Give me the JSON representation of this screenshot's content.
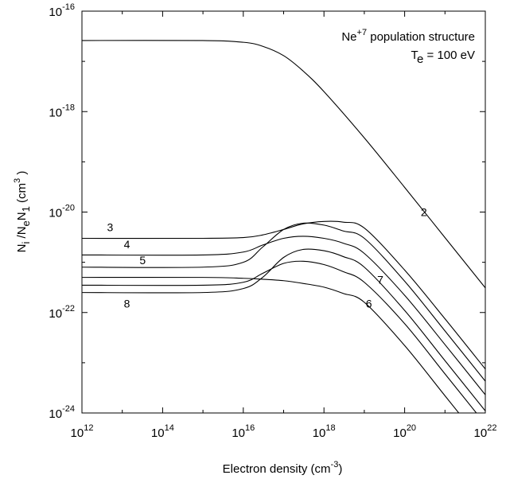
{
  "chart_data": {
    "type": "line",
    "title": {
      "species_base": "Ne",
      "species_sup": "+7",
      "rest": " population structure"
    },
    "subtitle": {
      "base": "T",
      "sub": "e",
      "rest": " = 100 eV"
    },
    "xlabel": {
      "text": "Electron density (cm",
      "sup": "-3",
      "close": ")"
    },
    "ylabel": {
      "p1": "N",
      "s1": "i",
      "p2": " /N",
      "s2": "e",
      "p3": "N",
      "s3": "1",
      "p4": " (cm",
      "sup": "3",
      "p5": " )"
    },
    "x_scale": "log",
    "y_scale": "log",
    "xlim": [
      1000000000000.0,
      1e+22
    ],
    "ylim": [
      1e-24,
      1e-16
    ],
    "grid": false,
    "x_ticks": [
      {
        "base": "10",
        "exp": "12",
        "value": 1000000000000.0
      },
      {
        "base": "10",
        "exp": "14",
        "value": 100000000000000.0
      },
      {
        "base": "10",
        "exp": "16",
        "value": 1e+16
      },
      {
        "base": "10",
        "exp": "18",
        "value": 1e+18
      },
      {
        "base": "10",
        "exp": "20",
        "value": 1e+20
      },
      {
        "base": "10",
        "exp": "22",
        "value": 1e+22
      }
    ],
    "y_ticks": [
      {
        "base": "10",
        "exp": "-24",
        "value": 1e-24
      },
      {
        "base": "10",
        "exp": "-22",
        "value": 1e-22
      },
      {
        "base": "10",
        "exp": "-20",
        "value": 1e-20
      },
      {
        "base": "10",
        "exp": "-18",
        "value": 1e-18
      },
      {
        "base": "10",
        "exp": "-16",
        "value": 1e-16
      }
    ],
    "series": [
      {
        "name": "2",
        "label_at": [
          3e+20,
          1e-20
        ],
        "x": [
          1000000000000.0,
          1000000000000000.0,
          1e+16,
          3e+16,
          1e+17,
          3e+17,
          1e+18,
          1e+19,
          1e+20,
          1e+21,
          1e+22
        ],
        "y": [
          2.6e-17,
          2.6e-17,
          2.4e-17,
          2e-17,
          1.3e-17,
          6.5e-18,
          2.5e-18,
          3e-19,
          3.1e-20,
          3.1e-21,
          3.1e-22
        ]
      },
      {
        "name": "3",
        "label_at": [
          5000000000000.0,
          5e-21
        ],
        "x": [
          1000000000000.0,
          1000000000000000.0,
          1e+16,
          3e+16,
          1e+17,
          3e+17,
          1e+18,
          3e+18,
          1e+19,
          1e+20,
          1e+21,
          1e+22
        ],
        "y": [
          3e-21,
          3e-21,
          3.1e-21,
          3.5e-21,
          4.5e-21,
          5.8e-21,
          6.5e-21,
          6.3e-21,
          4.8e-21,
          7e-22,
          7.5e-23,
          7.5e-24
        ]
      },
      {
        "name": "4",
        "label_at": [
          13000000000000.0,
          2.3e-21
        ],
        "x": [
          1000000000000.0,
          1000000000000000.0,
          1e+16,
          3e+16,
          1e+17,
          3e+17,
          1e+18,
          3e+18,
          1e+19,
          1e+20,
          1e+21,
          1e+22
        ],
        "y": [
          1.4e-21,
          1.4e-21,
          1.6e-21,
          2.2e-21,
          3e-21,
          3.3e-21,
          3e-21,
          2.4e-21,
          1.5e-21,
          2.2e-22,
          2.3e-23,
          2.3e-24
        ]
      },
      {
        "name": "5",
        "label_at": [
          32000000000000.0,
          1.1e-21
        ],
        "x": [
          1000000000000.0,
          1000000000000000.0,
          1e+16,
          3e+16,
          1e+17,
          3e+17,
          1e+18,
          3e+18,
          1e+19,
          1e+20,
          1e+21,
          1e+22
        ],
        "y": [
          8e-22,
          8e-22,
          1e-21,
          2e-21,
          4.5e-21,
          6e-21,
          5.5e-21,
          4.2e-21,
          3e-21,
          4.2e-22,
          4.3e-23,
          4.3e-24
        ]
      },
      {
        "name": "6",
        "label_at": [
          1.3e+19,
          1.5e-22
        ],
        "x": [
          1000000000000.0,
          1000000000000000.0,
          1e+16,
          3e+16,
          1e+17,
          3e+17,
          1e+18,
          3e+18,
          1e+19,
          1e+20,
          1e+21,
          1e+22
        ],
        "y": [
          5e-22,
          5e-22,
          4.8e-22,
          4.6e-22,
          4.3e-22,
          3.8e-22,
          3.2e-22,
          2.4e-22,
          1.6e-22,
          2.2e-23,
          2.2e-24,
          2.2e-25
        ]
      },
      {
        "name": "7",
        "label_at": [
          2.5e+19,
          4.5e-22
        ],
        "x": [
          1000000000000.0,
          1000000000000000.0,
          1e+16,
          3e+16,
          1e+17,
          3e+17,
          1e+18,
          3e+18,
          1e+19,
          1e+20,
          1e+21,
          1e+22
        ],
        "y": [
          3.5e-22,
          3.5e-22,
          4e-22,
          6e-22,
          9.5e-22,
          1.05e-21,
          9e-22,
          6.5e-22,
          4e-22,
          6e-23,
          6e-24,
          6e-25
        ]
      },
      {
        "name": "8",
        "label_at": [
          13000000000000.0,
          1.5e-22
        ],
        "x": [
          1000000000000.0,
          1000000000000000.0,
          1e+16,
          3e+16,
          1e+17,
          3e+17,
          1e+18,
          3e+18,
          1e+19,
          1e+20,
          1e+21,
          1e+22
        ],
        "y": [
          2.5e-22,
          2.5e-22,
          3e-22,
          5e-22,
          1.25e-21,
          1.8e-21,
          1.7e-21,
          1.3e-21,
          8e-22,
          1.1e-22,
          1.1e-23,
          1.1e-24
        ]
      }
    ]
  }
}
